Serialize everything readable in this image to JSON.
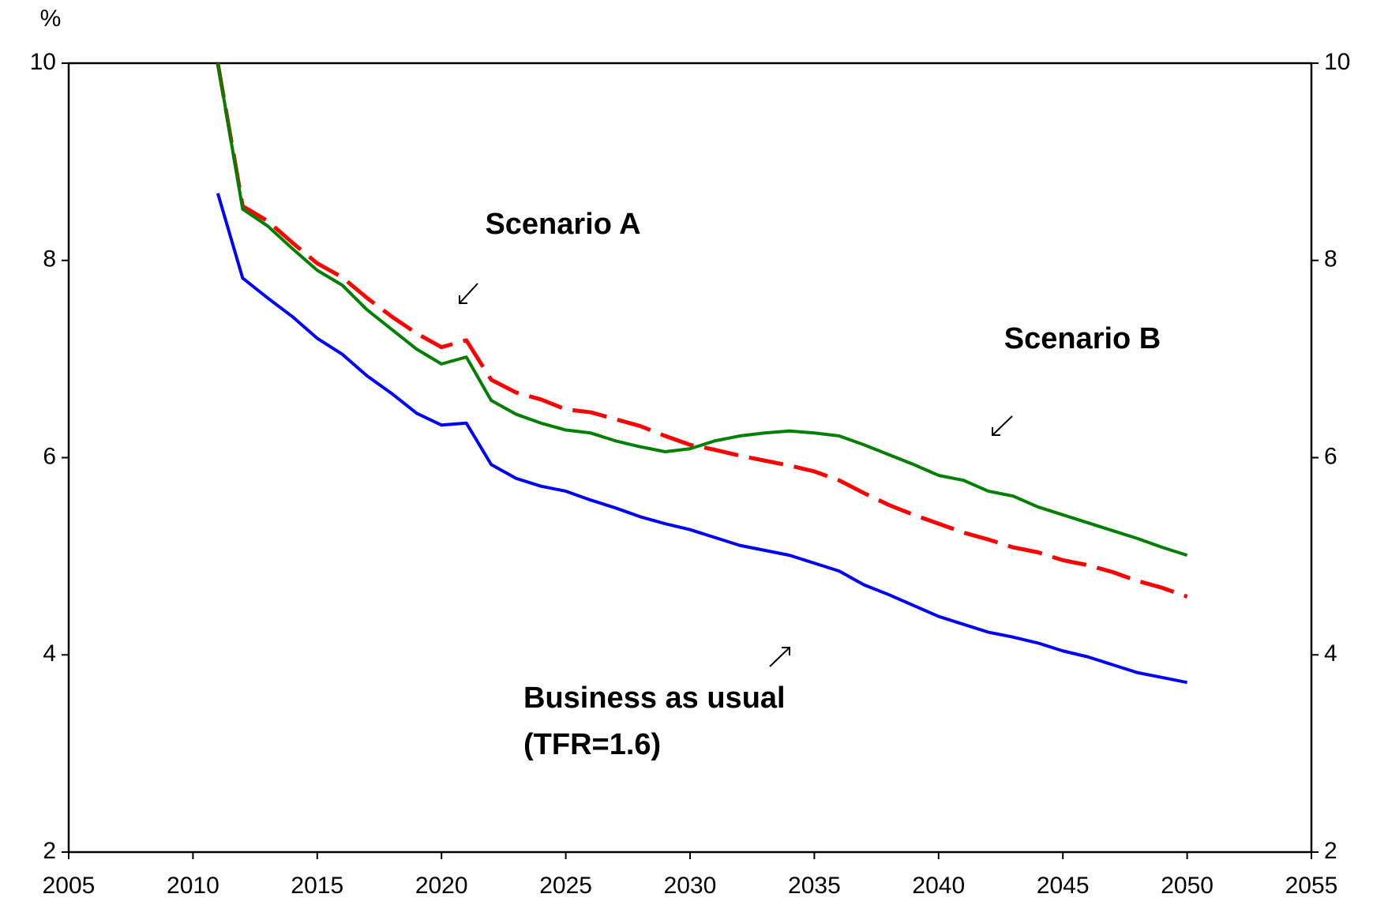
{
  "chart_data": {
    "type": "line",
    "y_label": "%",
    "x": [
      2011,
      2012,
      2013,
      2014,
      2015,
      2016,
      2017,
      2018,
      2019,
      2020,
      2021,
      2022,
      2023,
      2024,
      2025,
      2026,
      2027,
      2028,
      2029,
      2030,
      2031,
      2032,
      2033,
      2034,
      2035,
      2036,
      2037,
      2038,
      2039,
      2040,
      2041,
      2042,
      2043,
      2044,
      2045,
      2046,
      2047,
      2048,
      2049,
      2050
    ],
    "series": [
      {
        "color": "#0000ff",
        "style": "solid",
        "values": [
          8.68,
          7.82,
          7.62,
          7.43,
          7.21,
          7.05,
          6.83,
          6.65,
          6.45,
          6.33,
          6.35,
          5.93,
          5.79,
          5.71,
          5.66,
          5.57,
          5.49,
          5.4,
          5.33,
          5.27,
          5.19,
          5.11,
          5.06,
          5.01,
          4.93,
          4.85,
          4.71,
          4.61,
          4.5,
          4.39,
          4.31,
          4.23,
          4.18,
          4.12,
          4.04,
          3.98,
          3.9,
          3.82,
          3.77,
          3.72
        ]
      },
      {
        "color": "#ff0000",
        "style": "dashed",
        "values": [
          10.0,
          8.55,
          8.4,
          8.18,
          7.97,
          7.83,
          7.62,
          7.43,
          7.26,
          7.12,
          7.19,
          6.79,
          6.66,
          6.59,
          6.49,
          6.46,
          6.39,
          6.32,
          6.22,
          6.13,
          6.08,
          6.02,
          5.97,
          5.92,
          5.86,
          5.77,
          5.64,
          5.52,
          5.42,
          5.33,
          5.24,
          5.17,
          5.09,
          5.04,
          4.96,
          4.91,
          4.84,
          4.75,
          4.68,
          4.59
        ]
      },
      {
        "color": "#008000",
        "style": "solid",
        "values": [
          10.0,
          8.52,
          8.35,
          8.12,
          7.9,
          7.75,
          7.5,
          7.3,
          7.1,
          6.95,
          7.02,
          6.58,
          6.44,
          6.35,
          6.28,
          6.25,
          6.17,
          6.11,
          6.06,
          6.09,
          6.17,
          6.22,
          6.25,
          6.27,
          6.25,
          6.22,
          6.13,
          6.03,
          5.93,
          5.82,
          5.77,
          5.66,
          5.61,
          5.5,
          5.42,
          5.34,
          5.26,
          5.18,
          5.09,
          5.01
        ]
      }
    ],
    "annotations": [
      "Scenario A",
      "Scenario B",
      "Business as usual",
      "(TFR=1.6)"
    ],
    "xlim": [
      2005,
      2055
    ],
    "xticks": [
      2005,
      2010,
      2015,
      2020,
      2025,
      2030,
      2035,
      2040,
      2045,
      2050,
      2055
    ],
    "ylim": [
      2,
      10
    ],
    "yticks": [
      2,
      4,
      6,
      8,
      10
    ],
    "y2lim": [
      2,
      10
    ],
    "y2ticks": [
      2,
      4,
      6,
      8,
      10
    ],
    "grid": false
  }
}
